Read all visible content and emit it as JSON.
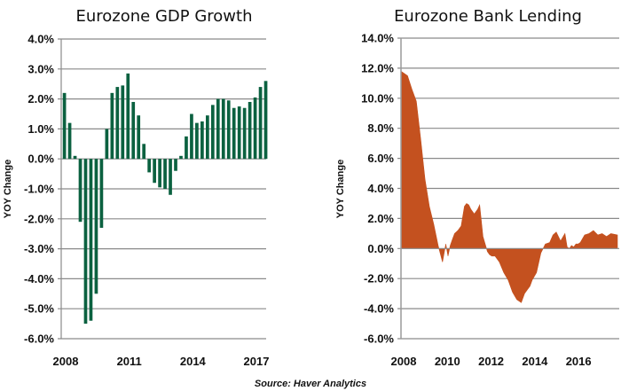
{
  "source": "Source: Haver Analytics",
  "chart_data": [
    {
      "type": "bar",
      "title": "Eurozone GDP Growth",
      "xlabel": "",
      "ylabel": "YOY Change",
      "ylim": [
        -6.0,
        4.0
      ],
      "yticks": [
        "4.0%",
        "3.0%",
        "2.0%",
        "1.0%",
        "0.0%",
        "-1.0%",
        "-2.0%",
        "-3.0%",
        "-4.0%",
        "-5.0%",
        "-6.0%"
      ],
      "ytick_values": [
        4,
        3,
        2,
        1,
        0,
        -1,
        -2,
        -3,
        -4,
        -5,
        -6
      ],
      "xticks": [
        "2008",
        "2011",
        "2014",
        "2017"
      ],
      "xtick_values": [
        2008.0,
        2011.0,
        2014.0,
        2017.0
      ],
      "grid": true,
      "color": "#0b6140",
      "x_start": 2008.0,
      "x_step": 0.25,
      "values": [
        2.2,
        1.2,
        0.1,
        -2.1,
        -5.5,
        -5.4,
        -4.5,
        -2.3,
        1.0,
        2.2,
        2.4,
        2.45,
        2.85,
        1.9,
        1.45,
        0.5,
        -0.45,
        -0.8,
        -0.95,
        -1.0,
        -1.2,
        -0.4,
        0.1,
        0.75,
        1.5,
        1.2,
        1.25,
        1.45,
        1.8,
        2.0,
        2.0,
        1.95,
        1.7,
        1.75,
        1.7,
        1.9,
        2.05,
        2.4,
        2.6
      ]
    },
    {
      "type": "area",
      "title": "Eurozone Bank Lending",
      "xlabel": "",
      "ylabel": "YOY Change",
      "ylim": [
        -6.0,
        14.0
      ],
      "yticks": [
        "14.0%",
        "12.0%",
        "10.0%",
        "8.0%",
        "6.0%",
        "4.0%",
        "2.0%",
        "0.0%",
        "-2.0%",
        "-4.0%",
        "-6.0%"
      ],
      "ytick_values": [
        14,
        12,
        10,
        8,
        6,
        4,
        2,
        0,
        -2,
        -4,
        -6
      ],
      "xticks": [
        "2008",
        "2010",
        "2012",
        "2014",
        "2016"
      ],
      "xtick_values": [
        2008,
        2010,
        2012,
        2014,
        2016
      ],
      "xlim": [
        2008.0,
        2017.9
      ],
      "grid": true,
      "color": "#c4511f",
      "x": [
        2008.0,
        2008.3,
        2008.5,
        2008.7,
        2008.9,
        2009.1,
        2009.3,
        2009.5,
        2009.7,
        2009.9,
        2010.05,
        2010.15,
        2010.25,
        2010.35,
        2010.45,
        2010.6,
        2010.75,
        2010.9,
        2011.0,
        2011.1,
        2011.2,
        2011.35,
        2011.5,
        2011.6,
        2011.75,
        2011.85,
        2011.95,
        2012.05,
        2012.15,
        2012.3,
        2012.5,
        2012.7,
        2012.9,
        2013.1,
        2013.3,
        2013.5,
        2013.65,
        2013.8,
        2013.9,
        2014.0,
        2014.2,
        2014.4,
        2014.6,
        2014.8,
        2014.95,
        2015.1,
        2015.3,
        2015.5,
        2015.6,
        2015.7,
        2015.8,
        2015.9,
        2016.0,
        2016.1,
        2016.2,
        2016.4,
        2016.6,
        2016.8,
        2017.0,
        2017.2,
        2017.4,
        2017.6,
        2017.9
      ],
      "values": [
        11.8,
        11.5,
        10.6,
        9.8,
        7.3,
        4.6,
        2.8,
        1.6,
        0.2,
        -0.9,
        0.3,
        -0.5,
        0.2,
        0.6,
        1.0,
        1.2,
        1.5,
        2.8,
        3.0,
        2.9,
        2.6,
        2.3,
        2.6,
        2.9,
        0.8,
        0.3,
        -0.2,
        -0.4,
        -0.5,
        -0.5,
        -0.9,
        -1.6,
        -2.1,
        -2.9,
        -3.4,
        -3.6,
        -3.0,
        -2.7,
        -2.5,
        -2.1,
        -1.6,
        -0.3,
        0.3,
        0.4,
        0.9,
        1.1,
        0.5,
        1.0,
        0.1,
        0.0,
        0.2,
        0.1,
        0.3,
        0.3,
        0.4,
        0.9,
        1.0,
        1.2,
        0.9,
        1.0,
        0.8,
        1.0,
        0.9
      ]
    }
  ]
}
